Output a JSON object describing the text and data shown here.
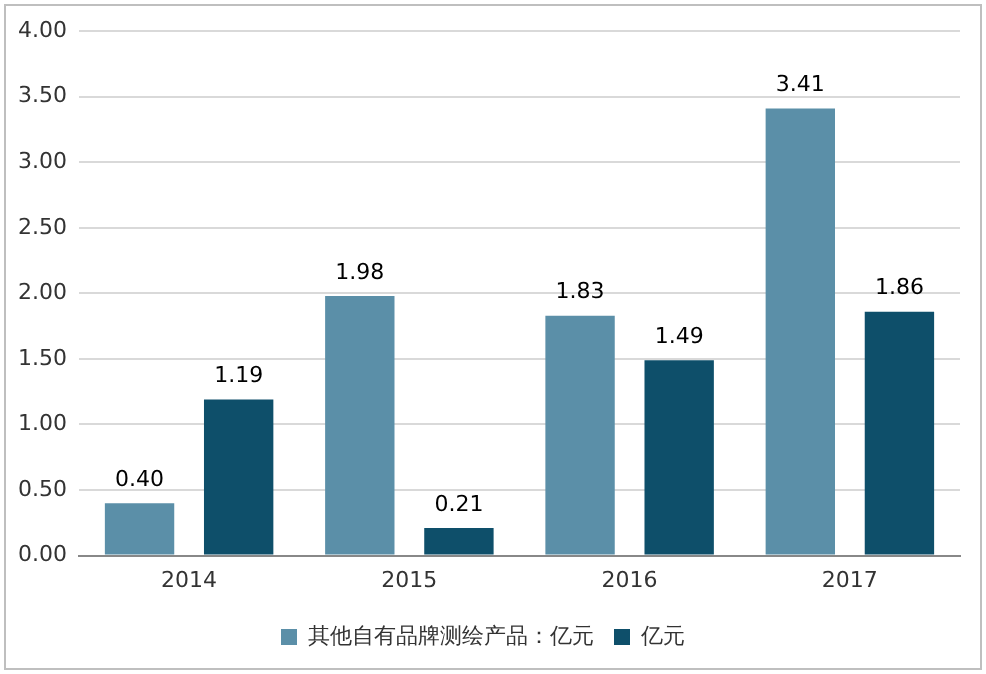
{
  "chart_data": {
    "type": "bar",
    "categories": [
      "2014",
      "2015",
      "2016",
      "2017"
    ],
    "series": [
      {
        "name": "其他自有品牌测绘产品：亿元",
        "color": "#5b8fa8",
        "values": [
          0.4,
          1.98,
          1.83,
          3.41
        ],
        "value_labels": [
          "0.40",
          "1.98",
          "1.83",
          "3.41"
        ]
      },
      {
        "name": "亿元",
        "color": "#0e4f6a",
        "values": [
          1.19,
          0.21,
          1.49,
          1.86
        ],
        "value_labels": [
          "1.19",
          "0.21",
          "1.49",
          "1.86"
        ]
      }
    ],
    "ylim": [
      0,
      4
    ],
    "yticks": [
      {
        "value": 0,
        "label": "0.00"
      },
      {
        "value": 0.5,
        "label": "0.50"
      },
      {
        "value": 1,
        "label": "1.00"
      },
      {
        "value": 1.5,
        "label": "1.50"
      },
      {
        "value": 2,
        "label": "2.00"
      },
      {
        "value": 2.5,
        "label": "2.50"
      },
      {
        "value": 3,
        "label": "3.00"
      },
      {
        "value": 3.5,
        "label": "3.50"
      },
      {
        "value": 4,
        "label": "4.00"
      }
    ],
    "grid": "y",
    "legend": "bottom"
  }
}
